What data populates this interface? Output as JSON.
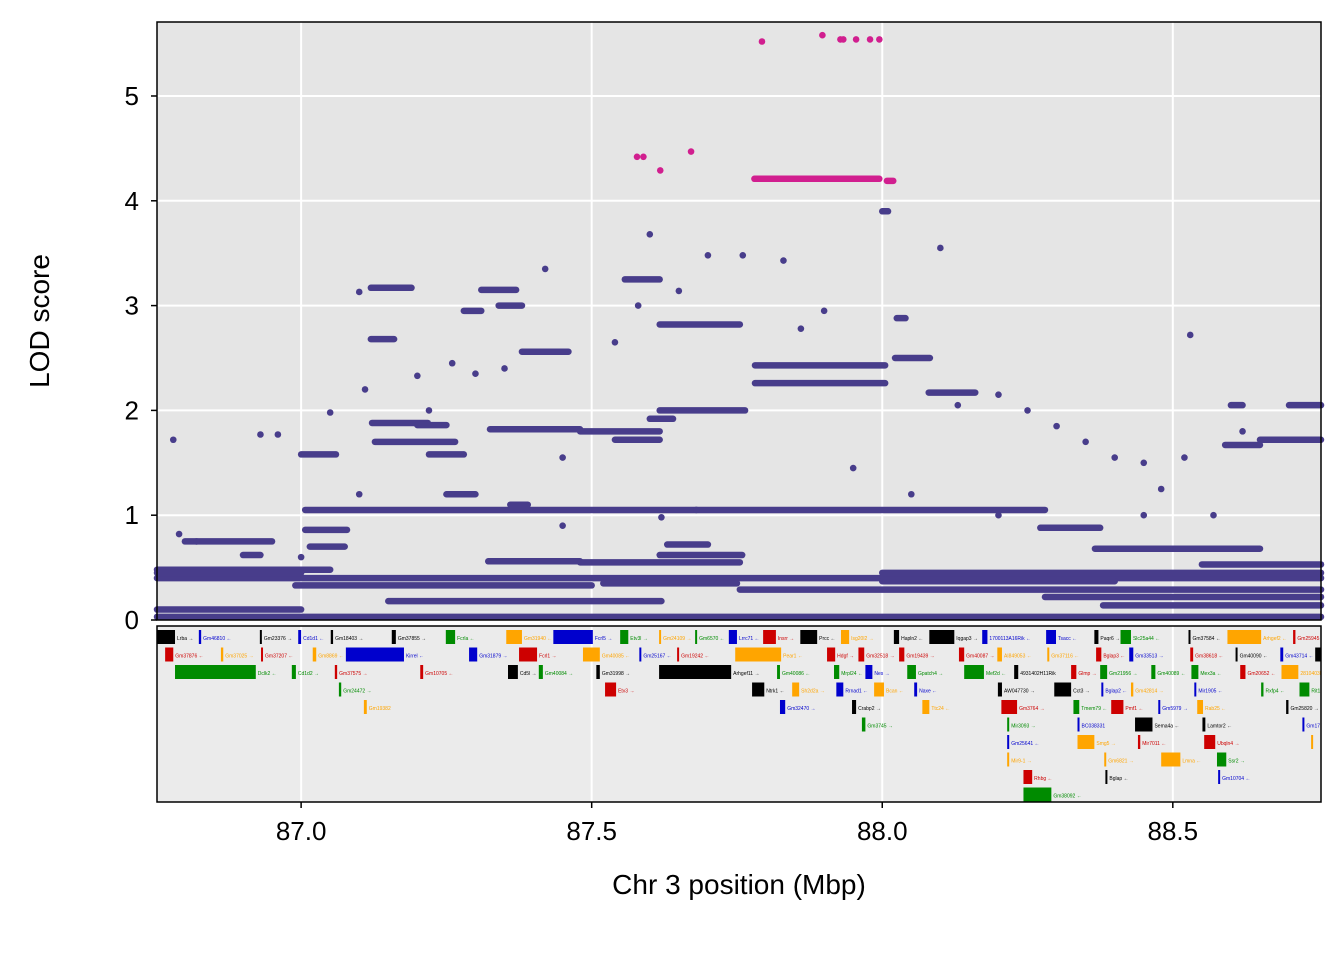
{
  "chart_data": {
    "type": "scatter",
    "title": "",
    "xlabel": "Chr 3 position (Mbp)",
    "ylabel": "LOD score",
    "xlim": [
      86.752,
      88.755
    ],
    "ylim": [
      0,
      5.706
    ],
    "xticks": [
      "87.0",
      "87.5",
      "88.0",
      "88.5"
    ],
    "xtick_values": [
      87.0,
      87.5,
      88.0,
      88.5
    ],
    "yticks": [
      "0",
      "1",
      "2",
      "3",
      "4",
      "5"
    ],
    "ytick_values": [
      0,
      1,
      2,
      3,
      4,
      5
    ],
    "grid": true,
    "colors": {
      "base": "#483D8B",
      "highlight": "#D11F8F",
      "panel": "#E5E5E5",
      "gene_panel": "#EBEBEB"
    },
    "series": [
      {
        "color": "#483D8B",
        "runs": [
          [
            86.752,
            88.755,
            0.4
          ],
          [
            86.752,
            87.05,
            0.48
          ],
          [
            86.752,
            87.0,
            0.1
          ],
          [
            86.752,
            88.755,
            0.03
          ],
          [
            86.752,
            87.0,
            0.45
          ],
          [
            87.007,
            88.28,
            1.05
          ],
          [
            88.272,
            88.375,
            0.88
          ],
          [
            87.007,
            87.079,
            0.86
          ],
          [
            87.015,
            87.075,
            0.7
          ],
          [
            87.557,
            87.617,
            3.25
          ],
          [
            87.617,
            87.755,
            2.82
          ],
          [
            87.781,
            88.005,
            2.43
          ],
          [
            87.781,
            88.005,
            2.26
          ],
          [
            87.617,
            87.764,
            2.0
          ],
          [
            87.6,
            87.64,
            1.92
          ],
          [
            87.325,
            87.48,
            1.82
          ],
          [
            87.48,
            87.617,
            1.8
          ],
          [
            87.54,
            87.617,
            1.72
          ],
          [
            87.122,
            87.218,
            1.88
          ],
          [
            87.127,
            87.265,
            1.7
          ],
          [
            87.22,
            87.28,
            1.58
          ],
          [
            87.322,
            87.48,
            0.56
          ],
          [
            87.48,
            87.755,
            0.55
          ],
          [
            87.617,
            87.759,
            0.62
          ],
          [
            87.755,
            88.755,
            0.29
          ],
          [
            88.65,
            88.755,
            1.72
          ],
          [
            88.59,
            88.65,
            1.67
          ],
          [
            88.022,
            88.082,
            2.5
          ],
          [
            88.0,
            88.01,
            3.9
          ],
          [
            88.025,
            88.04,
            2.88
          ],
          [
            88.366,
            88.65,
            0.68
          ],
          [
            88.55,
            88.755,
            0.53
          ],
          [
            88.28,
            88.755,
            0.22
          ],
          [
            88.38,
            88.755,
            0.14
          ],
          [
            87.28,
            87.31,
            2.95
          ],
          [
            87.31,
            87.37,
            3.15
          ],
          [
            87.34,
            87.38,
            3.0
          ],
          [
            87.12,
            87.19,
            3.17
          ],
          [
            87.12,
            87.16,
            2.68
          ],
          [
            87.38,
            87.46,
            2.56
          ],
          [
            87.15,
            87.62,
            0.18
          ],
          [
            87.52,
            87.75,
            0.35
          ],
          [
            86.99,
            87.5,
            0.33
          ],
          [
            88.0,
            88.755,
            0.45
          ],
          [
            88.0,
            88.4,
            0.37
          ],
          [
            86.8,
            86.95,
            0.75
          ],
          [
            86.9,
            86.93,
            0.62
          ],
          [
            88.08,
            88.16,
            2.17
          ],
          [
            88.6,
            88.62,
            2.05
          ],
          [
            87.0,
            87.06,
            1.58
          ],
          [
            87.2,
            87.25,
            1.86
          ],
          [
            87.36,
            87.39,
            1.1
          ],
          [
            87.25,
            87.3,
            1.2
          ],
          [
            88.7,
            88.755,
            2.05
          ],
          [
            87.63,
            87.7,
            0.72
          ]
        ],
        "points": [
          [
            86.78,
            1.72
          ],
          [
            86.93,
            1.77
          ],
          [
            86.96,
            1.77
          ],
          [
            87.05,
            1.98
          ],
          [
            87.1,
            3.13
          ],
          [
            87.11,
            2.2
          ],
          [
            87.2,
            2.33
          ],
          [
            87.22,
            2.0
          ],
          [
            87.26,
            2.45
          ],
          [
            87.3,
            2.35
          ],
          [
            87.35,
            2.4
          ],
          [
            87.42,
            3.35
          ],
          [
            87.45,
            1.55
          ],
          [
            87.54,
            2.65
          ],
          [
            87.58,
            3.0
          ],
          [
            87.6,
            3.68
          ],
          [
            87.65,
            3.14
          ],
          [
            87.7,
            3.48
          ],
          [
            87.76,
            3.48
          ],
          [
            87.83,
            3.43
          ],
          [
            87.9,
            2.95
          ],
          [
            87.86,
            2.78
          ],
          [
            88.1,
            3.55
          ],
          [
            88.13,
            2.05
          ],
          [
            88.2,
            2.15
          ],
          [
            88.25,
            2.0
          ],
          [
            88.3,
            1.85
          ],
          [
            88.35,
            1.7
          ],
          [
            88.4,
            1.55
          ],
          [
            88.45,
            1.5
          ],
          [
            88.48,
            1.25
          ],
          [
            88.53,
            2.72
          ],
          [
            88.52,
            1.55
          ],
          [
            88.62,
            1.8
          ],
          [
            88.57,
            1.0
          ],
          [
            88.45,
            1.0
          ],
          [
            88.2,
            1.0
          ],
          [
            87.95,
            1.45
          ],
          [
            88.05,
            1.2
          ],
          [
            87.62,
            0.98
          ],
          [
            87.68,
            1.05
          ],
          [
            87.1,
            1.2
          ],
          [
            87.0,
            0.6
          ],
          [
            86.79,
            0.82
          ],
          [
            86.82,
            0.75
          ],
          [
            87.45,
            0.9
          ]
        ]
      },
      {
        "color": "#D11F8F",
        "runs": [
          [
            87.78,
            87.995,
            4.21
          ],
          [
            88.008,
            88.019,
            4.19
          ]
        ],
        "points": [
          [
            87.578,
            4.42
          ],
          [
            87.589,
            4.42
          ],
          [
            87.618,
            4.29
          ],
          [
            87.671,
            4.47
          ],
          [
            87.793,
            5.52
          ],
          [
            87.897,
            5.58
          ],
          [
            87.928,
            5.54
          ],
          [
            87.933,
            5.54
          ],
          [
            87.955,
            5.54
          ],
          [
            87.979,
            5.54
          ],
          [
            87.995,
            5.54
          ]
        ]
      }
    ]
  },
  "genes": [
    [
      "Lrba →",
      86.752,
      86.783,
      0,
      "#000000"
    ],
    [
      "Gm46810 ←",
      86.824,
      86.828,
      0,
      "#0000CD"
    ],
    [
      "Gm23376 →",
      86.929,
      86.931,
      0,
      "#000000"
    ],
    [
      "Cd1d1 ←",
      86.995,
      87.0,
      0,
      "#0000CD"
    ],
    [
      "Gm18403 →",
      87.051,
      87.055,
      0,
      "#000000"
    ],
    [
      "Gm37855 →",
      87.156,
      87.163,
      0,
      "#000000"
    ],
    [
      "Fcrla ←",
      87.249,
      87.265,
      0,
      "#008B00"
    ],
    [
      "Gm31940 ←",
      87.353,
      87.38,
      0,
      "#FFA500"
    ],
    [
      "Fcrl5 →",
      87.434,
      87.502,
      0,
      "#0000CD"
    ],
    [
      "Etv3l →",
      87.549,
      87.563,
      0,
      "#008B00"
    ],
    [
      "Gm24109 →",
      87.616,
      87.619,
      0,
      "#FFA500"
    ],
    [
      "Gm6570 ←",
      87.678,
      87.681,
      0,
      "#008B00"
    ],
    [
      "Lrrc71 ←",
      87.736,
      87.75,
      0,
      "#0000CD"
    ],
    [
      "Insrr →",
      87.795,
      87.817,
      0,
      "#CD0000"
    ],
    [
      "Prcc ←",
      87.859,
      87.888,
      0,
      "#000000"
    ],
    [
      "Isg20l2 →",
      87.929,
      87.943,
      0,
      "#FFA500"
    ],
    [
      "Hapln2 ←",
      88.02,
      88.029,
      0,
      "#000000"
    ],
    [
      "Iqgap3 →",
      88.081,
      88.124,
      0,
      "#000000"
    ],
    [
      "1700113A16Rik ←",
      88.172,
      88.181,
      0,
      "#0000CD"
    ],
    [
      "Tsacc ←",
      88.282,
      88.299,
      0,
      "#0000CD"
    ],
    [
      "Paqr6 →",
      88.365,
      88.372,
      0,
      "#000000"
    ],
    [
      "Slc25a44 ←",
      88.41,
      88.428,
      0,
      "#008B00"
    ],
    [
      "Gm37584 ←",
      88.527,
      88.53,
      0,
      "#000000"
    ],
    [
      "Arhgef2 ←",
      88.594,
      88.652,
      0,
      "#FFA500"
    ],
    [
      "Gm25945",
      88.707,
      88.711,
      0,
      "#CD0000"
    ],
    [
      "Gm37876 ←",
      86.766,
      86.78,
      1,
      "#CD0000"
    ],
    [
      "Gm37025 →",
      86.862,
      86.866,
      1,
      "#FFA500"
    ],
    [
      "Gm37207 ←",
      86.931,
      86.934,
      1,
      "#CD0000"
    ],
    [
      "Gm8869 ←",
      87.02,
      87.026,
      1,
      "#FFA500"
    ],
    [
      "Kirrel ←",
      87.077,
      87.177,
      1,
      "#0000CD"
    ],
    [
      "Gm31879 →",
      87.289,
      87.303,
      1,
      "#0000CD"
    ],
    [
      "Fcrl1 →",
      87.375,
      87.406,
      1,
      "#CD0000"
    ],
    [
      "Gm40085 ←",
      87.485,
      87.514,
      1,
      "#FFA500"
    ],
    [
      "Gm25167 ←",
      87.582,
      87.585,
      1,
      "#0000CD"
    ],
    [
      "Gm19242 ←",
      87.647,
      87.65,
      1,
      "#CD0000"
    ],
    [
      "Pear1 ←",
      87.747,
      87.826,
      1,
      "#FFA500"
    ],
    [
      "Hdgf →",
      87.905,
      87.919,
      1,
      "#CD0000"
    ],
    [
      "Gm32518 →",
      87.959,
      87.969,
      1,
      "#CD0000"
    ],
    [
      "Gm19439 →",
      88.029,
      88.038,
      1,
      "#CD0000"
    ],
    [
      "Gm40087 →",
      88.132,
      88.141,
      1,
      "#CD0000"
    ],
    [
      "AI849053 ←",
      88.198,
      88.206,
      1,
      "#FFA500"
    ],
    [
      "Gm37116 ←",
      88.284,
      88.287,
      1,
      "#FFA500"
    ],
    [
      "Bglap3 ←",
      88.368,
      88.377,
      1,
      "#CD0000"
    ],
    [
      "Gm33513 →",
      88.425,
      88.432,
      1,
      "#0000CD"
    ],
    [
      "Gm38618 ←",
      88.53,
      88.535,
      1,
      "#CD0000"
    ],
    [
      "Gm40090 ←",
      88.608,
      88.611,
      1,
      "#000000"
    ],
    [
      "Gm43714 ←",
      88.685,
      88.69,
      1,
      "#0000CD"
    ],
    [
      "",
      88.745,
      88.757,
      1,
      "#000000"
    ],
    [
      "Dclk2 ←",
      86.783,
      86.922,
      2,
      "#008B00"
    ],
    [
      "Cd1d2 →",
      86.984,
      86.991,
      2,
      "#008B00"
    ],
    [
      "Gm37575 →",
      87.058,
      87.062,
      2,
      "#CD0000"
    ],
    [
      "Gm10705 ←",
      87.205,
      87.21,
      2,
      "#CD0000"
    ],
    [
      "Cd5l →",
      87.356,
      87.373,
      2,
      "#000000"
    ],
    [
      "Gm40084 →",
      87.409,
      87.416,
      2,
      "#008B00"
    ],
    [
      "Gm31998 →",
      87.508,
      87.514,
      2,
      "#000000"
    ],
    [
      "Arhgef11 →",
      87.616,
      87.74,
      2,
      "#000000"
    ],
    [
      "Gm40086 ←",
      87.819,
      87.824,
      2,
      "#008B00"
    ],
    [
      "Mrpl24 ←",
      87.917,
      87.926,
      2,
      "#008B00"
    ],
    [
      "Nes →",
      87.971,
      87.983,
      2,
      "#0000CD"
    ],
    [
      "Gpatch4 →",
      88.043,
      88.058,
      2,
      "#008B00"
    ],
    [
      "Mef2d ←",
      88.141,
      88.175,
      2,
      "#008B00"
    ],
    [
      "4931402H11Rik",
      88.227,
      88.234,
      2,
      "#000000"
    ],
    [
      "Glmp →",
      88.325,
      88.334,
      2,
      "#CD0000"
    ],
    [
      "Gm21956 →",
      88.375,
      88.387,
      2,
      "#008B00"
    ],
    [
      "Gm40089 ←",
      88.463,
      88.47,
      2,
      "#008B00"
    ],
    [
      "Mex3a ←",
      88.532,
      88.544,
      2,
      "#008B00"
    ],
    [
      "Gm20652 ←",
      88.616,
      88.625,
      2,
      "#CD0000"
    ],
    [
      "2810403D21Rik",
      88.687,
      88.716,
      2,
      "#FFA500"
    ],
    [
      "Gm24472 →",
      87.065,
      87.069,
      3,
      "#008B00"
    ],
    [
      "Etv3 →",
      87.523,
      87.542,
      3,
      "#CD0000"
    ],
    [
      "Ntrk1 ←",
      87.776,
      87.797,
      3,
      "#000000"
    ],
    [
      "Sh2d2a →",
      87.845,
      87.857,
      3,
      "#FFA500"
    ],
    [
      "Rrnad1 ←",
      87.921,
      87.933,
      3,
      "#0000CD"
    ],
    [
      "Bcan ←",
      87.986,
      88.003,
      3,
      "#FFA500"
    ],
    [
      "Naxe ←",
      88.055,
      88.06,
      3,
      "#0000CD"
    ],
    [
      "AW047730 →",
      88.199,
      88.206,
      3,
      "#000000"
    ],
    [
      "Cct3 →",
      88.296,
      88.325,
      3,
      "#000000"
    ],
    [
      "Bglap2 ←",
      88.377,
      88.38,
      3,
      "#0000CD"
    ],
    [
      "Gm42814 →",
      88.428,
      88.432,
      3,
      "#FFA500"
    ],
    [
      "Mir1905 ←",
      88.537,
      88.54,
      3,
      "#0000CD"
    ],
    [
      "Rxfp4 ←",
      88.652,
      88.656,
      3,
      "#008B00"
    ],
    [
      "Rit1",
      88.718,
      88.735,
      3,
      "#008B00"
    ],
    [
      "Gm19382",
      87.108,
      87.113,
      4,
      "#FFA500"
    ],
    [
      "Gm32470 →",
      87.824,
      87.833,
      4,
      "#0000CD"
    ],
    [
      "Crabp2 →",
      87.948,
      87.955,
      4,
      "#000000"
    ],
    [
      "Ttc24 ←",
      88.069,
      88.081,
      4,
      "#FFA500"
    ],
    [
      "Gm3764 →",
      88.205,
      88.232,
      4,
      "#CD0000"
    ],
    [
      "Tmem79 ←",
      88.329,
      88.339,
      4,
      "#008B00"
    ],
    [
      "Pmf1 ←",
      88.394,
      88.415,
      4,
      "#CD0000"
    ],
    [
      "Gm5979 →",
      88.475,
      88.478,
      4,
      "#0000CD"
    ],
    [
      "Rab25 ←",
      88.542,
      88.552,
      4,
      "#FFA500"
    ],
    [
      "Gm25820 →",
      88.695,
      88.699,
      4,
      "#000000"
    ],
    [
      "Gm3745 →",
      87.965,
      87.971,
      5,
      "#008B00"
    ],
    [
      "Mir3093 →",
      88.215,
      88.218,
      5,
      "#008B00"
    ],
    [
      "BC038331",
      88.336,
      88.339,
      5,
      "#0000CD"
    ],
    [
      "Sema4a ←",
      88.435,
      88.465,
      5,
      "#000000"
    ],
    [
      "Lamtor2 ←",
      88.551,
      88.556,
      5,
      "#000000"
    ],
    [
      "Gm17",
      88.723,
      88.726,
      5,
      "#0000CD"
    ],
    [
      "Gm25641 ←",
      88.215,
      88.218,
      6,
      "#0000CD"
    ],
    [
      "Smg5 →",
      88.336,
      88.365,
      6,
      "#FFA500"
    ],
    [
      "Mir7011 ←",
      88.44,
      88.444,
      6,
      "#CD0000"
    ],
    [
      "Ubqln4 →",
      88.554,
      88.573,
      6,
      "#CD0000"
    ],
    [
      "",
      88.738,
      88.741,
      6,
      "#FFA500"
    ],
    [
      "Mir9-1 →",
      88.215,
      88.218,
      7,
      "#FFA500"
    ],
    [
      "Gm6821 →",
      88.382,
      88.385,
      7,
      "#FFA500"
    ],
    [
      "Lmna ←",
      88.48,
      88.513,
      7,
      "#FFA500"
    ],
    [
      "Ssr2 →",
      88.576,
      88.592,
      7,
      "#008B00"
    ],
    [
      "Rhbg ←",
      88.243,
      88.258,
      8,
      "#CD0000"
    ],
    [
      "Bglap ←",
      88.384,
      88.387,
      8,
      "#000000"
    ],
    [
      "Gm10704 ←",
      88.578,
      88.58,
      8,
      "#0000CD"
    ],
    [
      "Gm38092 ←",
      88.243,
      88.291,
      9,
      "#008B00"
    ]
  ]
}
